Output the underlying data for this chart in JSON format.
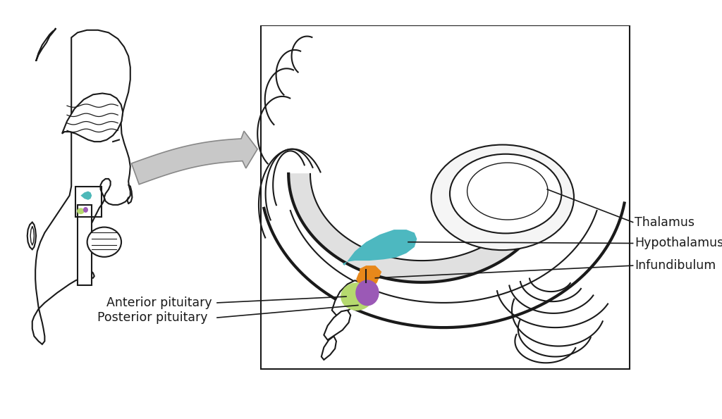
{
  "bg_color": "#ffffff",
  "stroke": "#1a1a1a",
  "thalamus_color": "#4db8b8",
  "hypothalamus_color": "#4db8c0",
  "infundibulum_color": "#e8881a",
  "anterior_pituitary_color": "#b5d96e",
  "posterior_pituitary_color": "#9b59b6",
  "arrow_fill": "#c8c8c8",
  "arrow_edge": "#888888",
  "labels": {
    "thalamus": "Thalamus",
    "hypothalamus": "Hypothalamus",
    "infundibulum": "Infundibulum",
    "anterior": "Anterior pituitary",
    "posterior": "Posterior pituitary"
  },
  "figsize": [
    10.24,
    5.95
  ],
  "dpi": 100
}
